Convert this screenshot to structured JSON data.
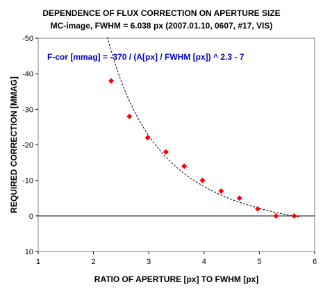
{
  "chart_data": {
    "type": "scatter",
    "title": "DEPENDENCE OF FLUX CORRECTION ON APERTURE SIZE",
    "subtitle": "MC-image, FWHM = 6.038 px (2007.01.10, 0607, #17, VIS)",
    "xlabel": "RATIO OF APERTURE [px] TO FWHM [px]",
    "ylabel": "REQUIRED CORRECTION [MMAG]",
    "annotation": "F-cor [mmag] = -370 / (A[px] / FWHM [px]) ^ 2.3 - 7",
    "xlim": [
      1,
      6
    ],
    "ylim": [
      10,
      -50
    ],
    "y_inverted": true,
    "x_ticks": [
      "1",
      "2",
      "3",
      "4",
      "5",
      "6"
    ],
    "y_ticks": [
      "-50",
      "-40",
      "-30",
      "-20",
      "-10",
      "0",
      "10"
    ],
    "grid": false,
    "legend": "none",
    "marker_color": "#ff0000",
    "curve_color": "#000000",
    "points": [
      {
        "x": 2.32,
        "y": -38
      },
      {
        "x": 2.65,
        "y": -28
      },
      {
        "x": 2.98,
        "y": -22
      },
      {
        "x": 3.31,
        "y": -18
      },
      {
        "x": 3.64,
        "y": -14
      },
      {
        "x": 3.97,
        "y": -10
      },
      {
        "x": 4.31,
        "y": -7
      },
      {
        "x": 4.64,
        "y": -5
      },
      {
        "x": 4.97,
        "y": -2
      },
      {
        "x": 5.3,
        "y": 0
      },
      {
        "x": 5.63,
        "y": 0
      }
    ],
    "fit": {
      "a": -370,
      "p": 2.3,
      "c": -7,
      "x_from": 2.25,
      "x_to": 5.75
    }
  }
}
